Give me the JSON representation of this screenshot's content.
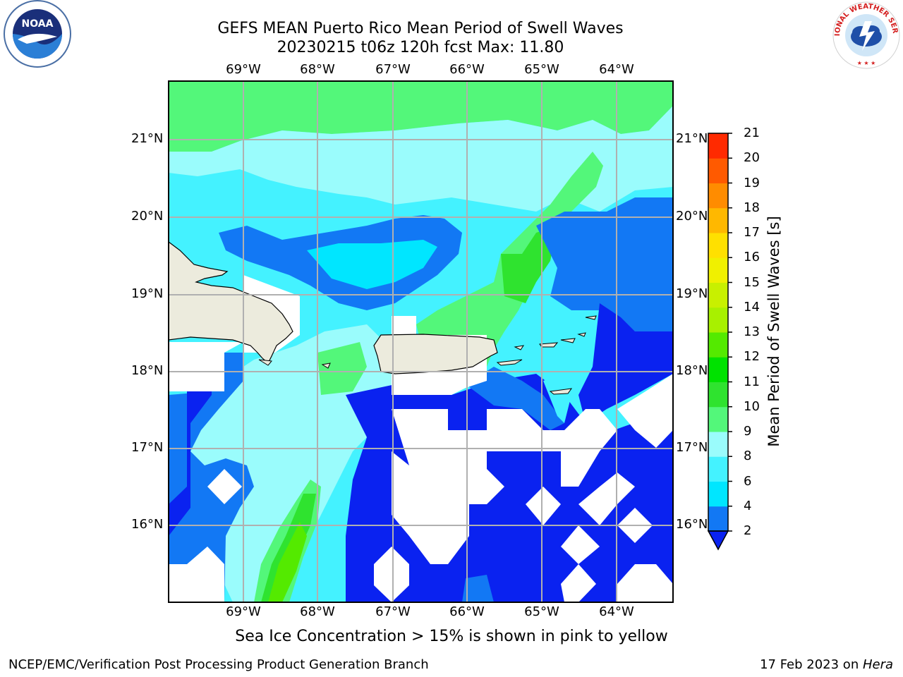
{
  "title": {
    "line1": "GEFS MEAN Puerto Rico Mean Period of Swell Waves",
    "line2": "20230215 t06z 120h fcst   Max: 11.80"
  },
  "axes": {
    "lon_ticks": [
      "69°W",
      "68°W",
      "67°W",
      "66°W",
      "65°W",
      "64°W"
    ],
    "lat_ticks": [
      "21°N",
      "20°N",
      "19°N",
      "18°N",
      "17°N",
      "16°N"
    ],
    "lon_values": [
      -69,
      -68,
      -67,
      -66,
      -65,
      -64
    ],
    "lat_values": [
      21,
      20,
      19,
      18,
      17,
      16
    ],
    "extent": {
      "lon_min": -70.0,
      "lon_max": -63.3,
      "lat_min": 15.0,
      "lat_max": 21.75
    }
  },
  "colorbar": {
    "label": "Mean Period of Swell Waves [s]",
    "ticks": [
      "2",
      "4",
      "6",
      "8",
      "9",
      "10",
      "11",
      "12",
      "13",
      "14",
      "15",
      "16",
      "17",
      "18",
      "19",
      "20",
      "21"
    ],
    "colors": [
      "#0a22f0",
      "#1278f4",
      "#00e6ff",
      "#44f2ff",
      "#9afcfc",
      "#53f77a",
      "#2fe32f",
      "#00e200",
      "#54ea00",
      "#a8f000",
      "#c8f000",
      "#f0f000",
      "#ffe000",
      "#ffb800",
      "#ff8c00",
      "#ff5a00",
      "#ff2a00",
      "#ff0000"
    ]
  },
  "caption": "Sea Ice Concentration > 15% is shown in pink to yellow",
  "footer": {
    "credit": "NCEP/EMC/Verification Post Processing Product Generation Branch",
    "date": "17 Feb 2023 on ",
    "host": "Hera"
  },
  "logos": {
    "left": "NOAA",
    "right": "NATIONAL WEATHER SERVICE"
  },
  "colors": {
    "land": "#ecebdd",
    "grid": "#b0b0b0",
    "no_data": "#ffffff"
  }
}
